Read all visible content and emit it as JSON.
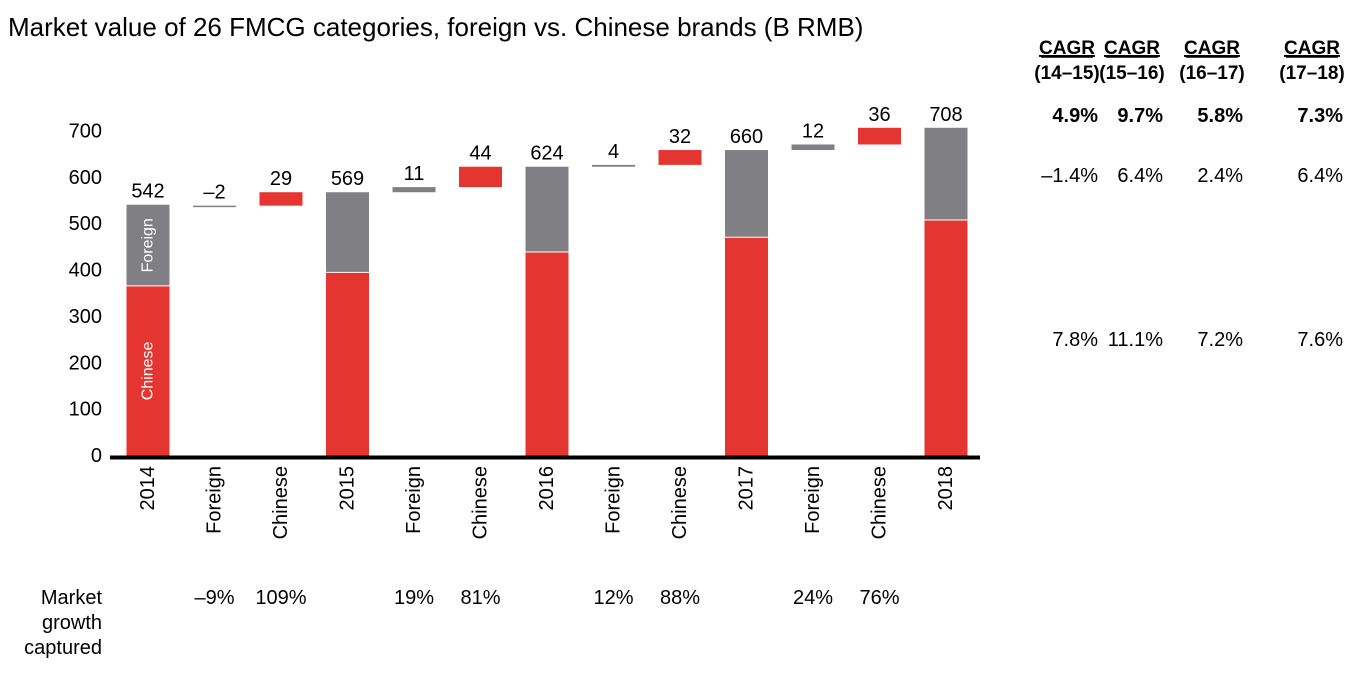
{
  "chart_data": {
    "type": "bar",
    "subtype": "waterfall",
    "title": "Market value of 26 FMCG categories, foreign vs. Chinese brands (B RMB)",
    "xlabel": "",
    "ylabel": "",
    "ylim": [
      0,
      700
    ],
    "yticks": [
      0,
      100,
      200,
      300,
      400,
      500,
      600,
      700
    ],
    "grid": false,
    "legend": "none",
    "colors": {
      "foreign": "#808084",
      "chinese": "#e43531",
      "axis": "#000000",
      "text": "#000000"
    },
    "categories": [
      "2014",
      "Foreign",
      "Chinese",
      "2015",
      "Foreign",
      "Chinese",
      "2016",
      "Foreign",
      "Chinese",
      "2017",
      "Foreign",
      "Chinese",
      "2018"
    ],
    "bars": [
      {
        "kind": "total",
        "label": "542",
        "total": 542,
        "chinese": 367,
        "foreign": 175
      },
      {
        "kind": "delta",
        "series": "foreign",
        "label": "–2",
        "value": -2,
        "base": 540
      },
      {
        "kind": "delta",
        "series": "chinese",
        "label": "29",
        "value": 29,
        "base": 540
      },
      {
        "kind": "total",
        "label": "569",
        "total": 569,
        "chinese": 396,
        "foreign": 173
      },
      {
        "kind": "delta",
        "series": "foreign",
        "label": "11",
        "value": 11,
        "base": 569
      },
      {
        "kind": "delta",
        "series": "chinese",
        "label": "44",
        "value": 44,
        "base": 580
      },
      {
        "kind": "total",
        "label": "624",
        "total": 624,
        "chinese": 440,
        "foreign": 184
      },
      {
        "kind": "delta",
        "series": "foreign",
        "label": "4",
        "value": 4,
        "base": 624
      },
      {
        "kind": "delta",
        "series": "chinese",
        "label": "32",
        "value": 32,
        "base": 628
      },
      {
        "kind": "total",
        "label": "660",
        "total": 660,
        "chinese": 472,
        "foreign": 188
      },
      {
        "kind": "delta",
        "series": "foreign",
        "label": "12",
        "value": 12,
        "base": 660
      },
      {
        "kind": "delta",
        "series": "chinese",
        "label": "36",
        "value": 36,
        "base": 672
      },
      {
        "kind": "total",
        "label": "708",
        "total": 708,
        "chinese": 509,
        "foreign": 199
      }
    ],
    "in_bar_labels": {
      "foreign": "Foreign",
      "chinese": "Chinese"
    },
    "market_growth": {
      "label_lines": [
        "Market",
        "growth",
        "captured"
      ],
      "values": [
        {
          "col": 1,
          "text": "–9%"
        },
        {
          "col": 2,
          "text": "109%"
        },
        {
          "col": 4,
          "text": "19%"
        },
        {
          "col": 5,
          "text": "81%"
        },
        {
          "col": 7,
          "text": "12%"
        },
        {
          "col": 8,
          "text": "88%"
        },
        {
          "col": 10,
          "text": "24%"
        },
        {
          "col": 11,
          "text": "76%"
        }
      ]
    },
    "cagr": {
      "headers": [
        {
          "line1": "CAGR",
          "line2": "(14–15)"
        },
        {
          "line1": "CAGR",
          "line2": "(15–16)"
        },
        {
          "line1": "CAGR",
          "line2": "(16–17)"
        },
        {
          "line1": "CAGR",
          "line2": "(17–18)"
        }
      ],
      "rows": [
        {
          "segment": "total",
          "bold": true,
          "values": [
            "4.9%",
            "9.7%",
            "5.8%",
            "7.3%"
          ]
        },
        {
          "segment": "foreign",
          "bold": false,
          "values": [
            "–1.4%",
            "6.4%",
            "2.4%",
            "6.4%"
          ]
        },
        {
          "segment": "chinese",
          "bold": false,
          "values": [
            "7.8%",
            "11.1%",
            "7.2%",
            "7.6%"
          ]
        }
      ]
    }
  }
}
